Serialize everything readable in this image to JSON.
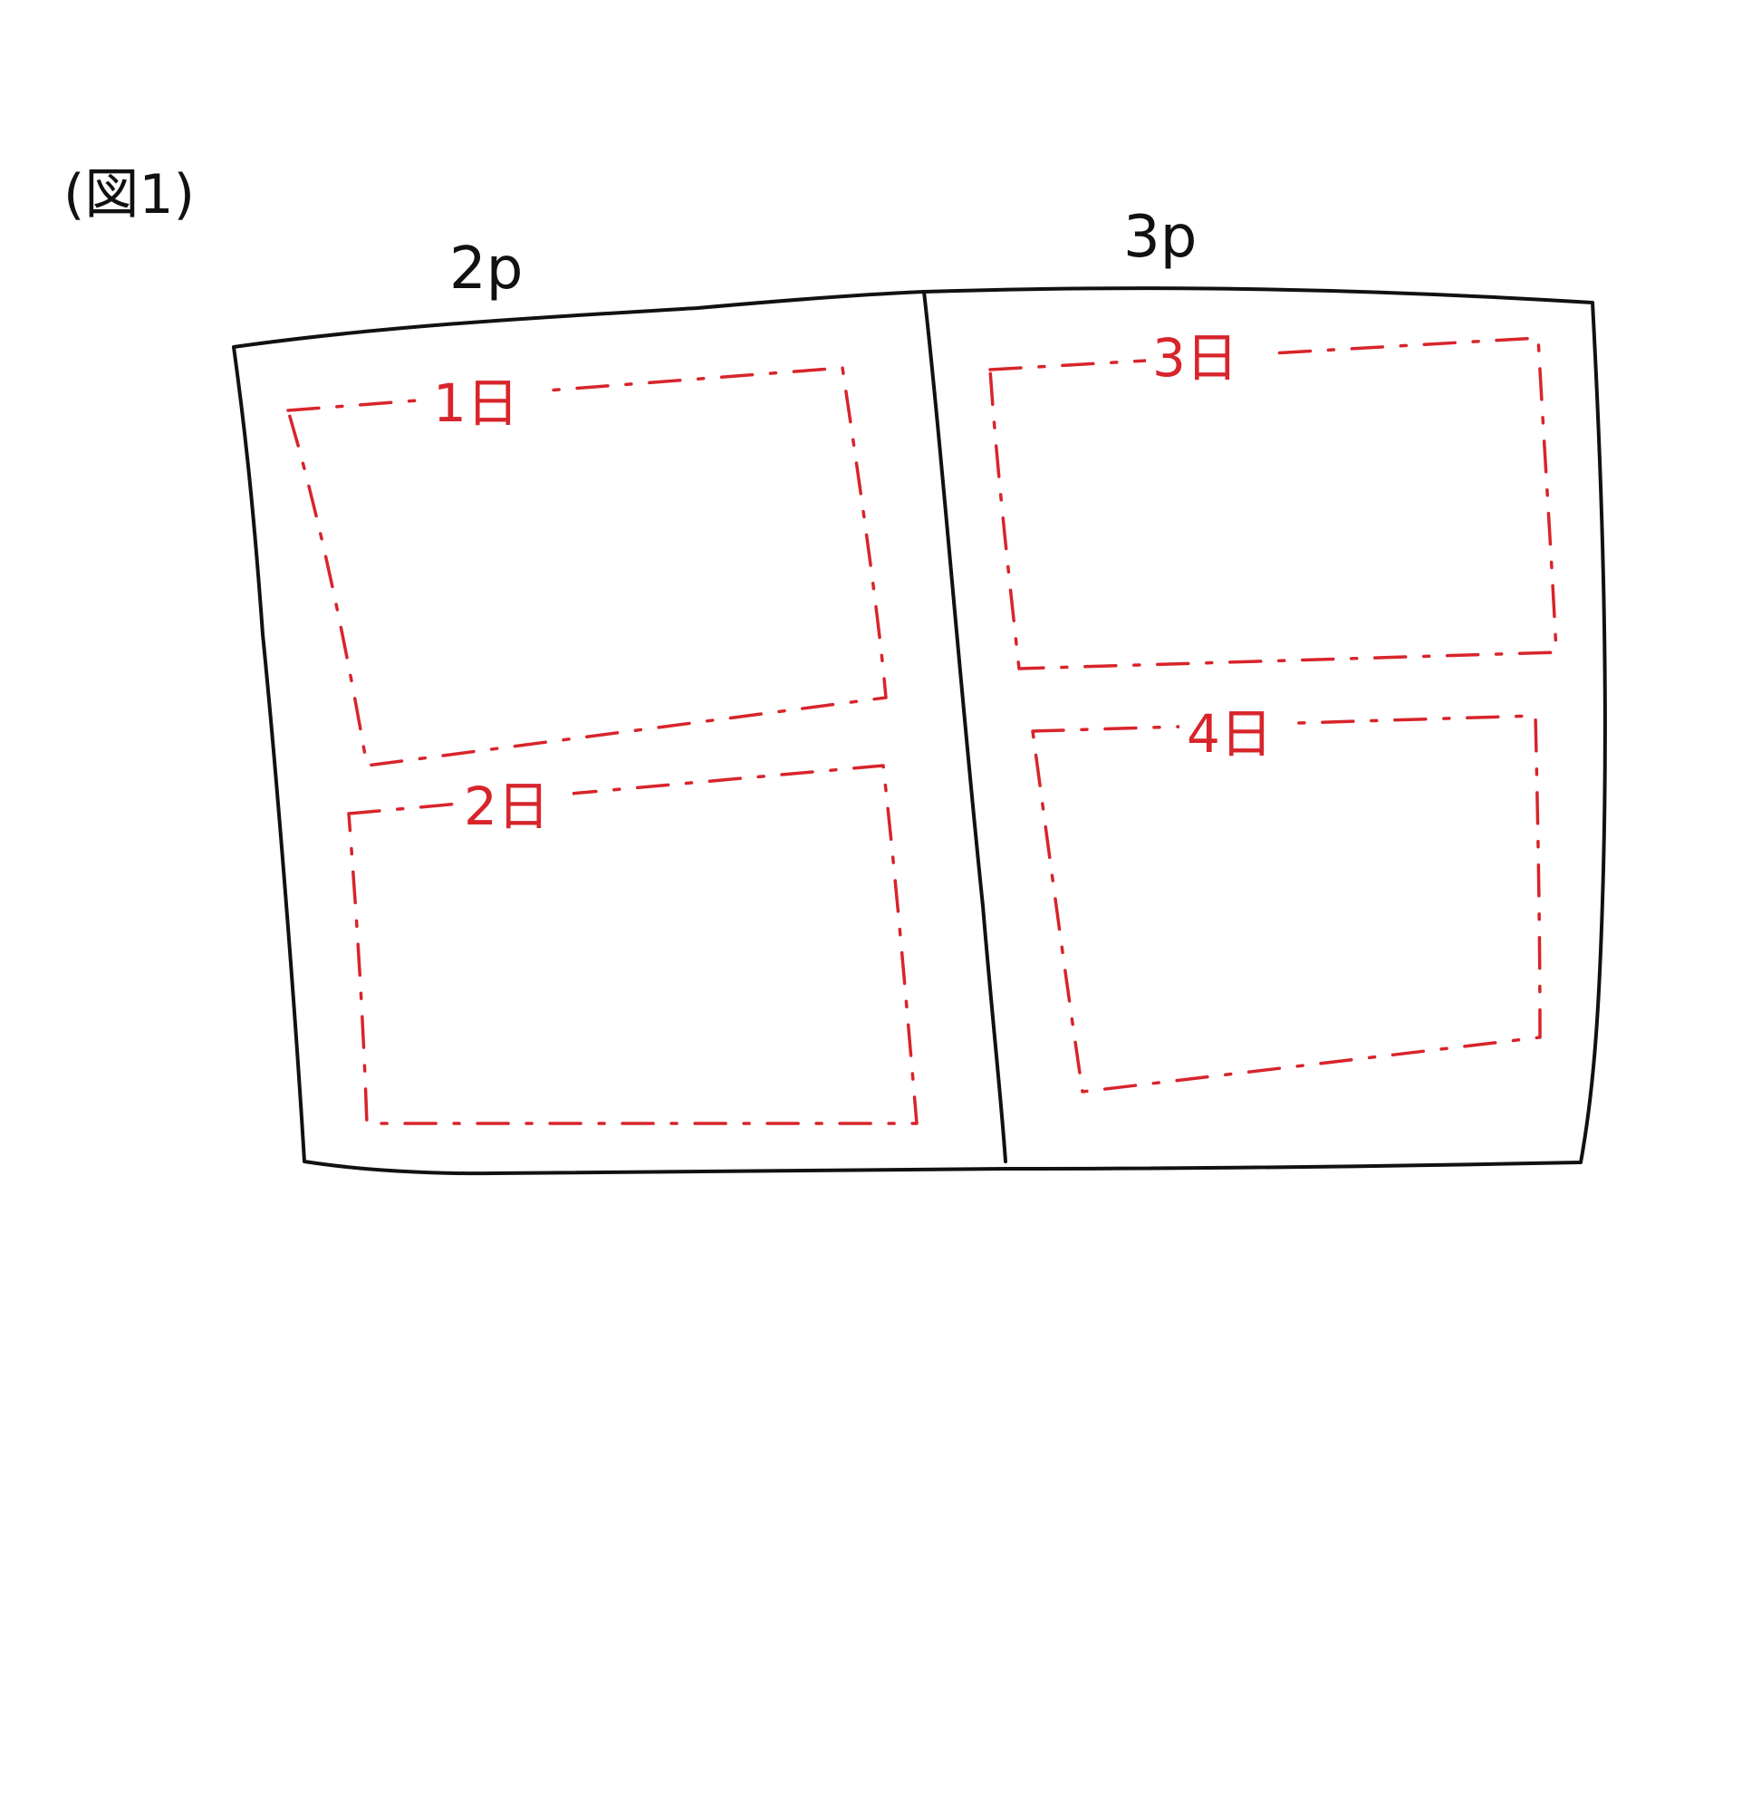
{
  "figure_label": "(図1)",
  "pages": [
    {
      "label": "2p",
      "days": [
        "1日",
        "2日"
      ]
    },
    {
      "label": "3p",
      "days": [
        "3日",
        "4日"
      ]
    }
  ],
  "colors": {
    "outline": "#111111",
    "day_box": "#d8242b",
    "background": "#ffffff"
  }
}
